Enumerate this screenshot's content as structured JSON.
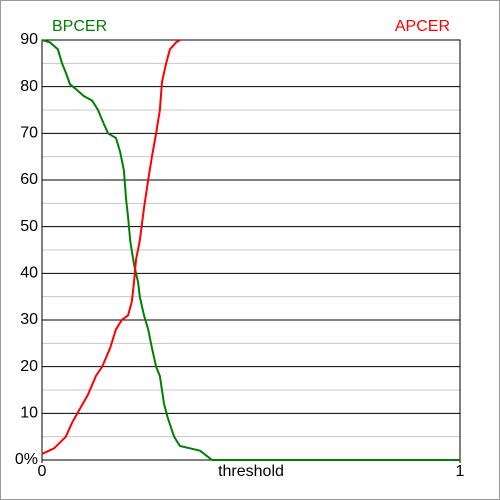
{
  "chart_data": {
    "type": "line",
    "xlabel": "threshold",
    "xlim": [
      0,
      1
    ],
    "xticks": [
      0,
      1
    ],
    "ylim": [
      0,
      90
    ],
    "yticks": [
      {
        "value": 0,
        "label": "0%"
      },
      10,
      20,
      30,
      40,
      50,
      60,
      70,
      80,
      90
    ],
    "minor_yticks": [
      5,
      15,
      25,
      35,
      45,
      55,
      65,
      75,
      85
    ],
    "grid": true,
    "series": [
      {
        "name": "BPCER",
        "color": "#008000",
        "legend": "top-left",
        "x": [
          0,
          0.019,
          0.038,
          0.048,
          0.057,
          0.067,
          0.081,
          0.1,
          0.12,
          0.134,
          0.148,
          0.158,
          0.177,
          0.187,
          0.196,
          0.201,
          0.206,
          0.211,
          0.22,
          0.23,
          0.234,
          0.244,
          0.254,
          0.263,
          0.273,
          0.282,
          0.292,
          0.301,
          0.316,
          0.33,
          0.354,
          0.378,
          0.407,
          1
        ],
        "values": [
          90,
          89.5,
          88,
          85,
          83,
          80.5,
          79.5,
          78,
          77,
          75,
          72,
          70,
          69,
          66,
          62,
          56,
          52,
          47,
          42,
          38,
          35,
          31,
          28,
          24,
          20,
          18,
          12,
          9,
          5,
          3,
          2.5,
          2,
          0,
          0
        ]
      },
      {
        "name": "APCER",
        "color": "#ff0000",
        "legend": "top-right",
        "x": [
          0,
          0.029,
          0.057,
          0.072,
          0.091,
          0.11,
          0.129,
          0.144,
          0.163,
          0.177,
          0.191,
          0.206,
          0.215,
          0.22,
          0.225,
          0.234,
          0.244,
          0.254,
          0.263,
          0.273,
          0.282,
          0.287,
          0.297,
          0.306,
          0.321,
          0.33
        ],
        "values": [
          1.3,
          2.5,
          5,
          8,
          11,
          14,
          18,
          20,
          24,
          28,
          30,
          31,
          34,
          38,
          43,
          47,
          54,
          60,
          65,
          70,
          75,
          81,
          85,
          88,
          89.5,
          90
        ]
      }
    ]
  }
}
